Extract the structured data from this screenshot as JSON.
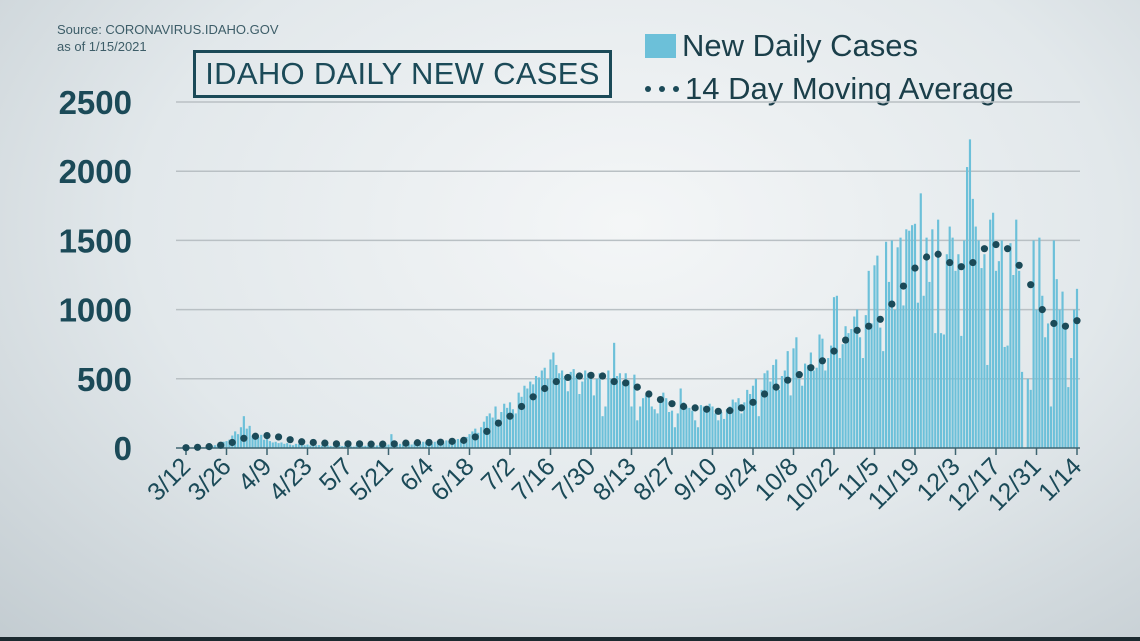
{
  "source_line": "Source: CORONAVIRUS.IDAHO.GOV",
  "as_of_line": "as of 1/15/2021",
  "colors": {
    "bars": "#6cc0d9",
    "dots": "#1b4a58",
    "grid": "#b9c0c4",
    "text": "#1b4a58"
  },
  "chart_data": {
    "type": "bar",
    "title": "IDAHO DAILY NEW CASES",
    "xlabel": "",
    "ylabel": "",
    "ylim": [
      0,
      2500
    ],
    "yticks": [
      "0",
      "500",
      "1000",
      "1500",
      "2000",
      "2500"
    ],
    "ytick_values": [
      0,
      500,
      1000,
      1500,
      2000,
      2500
    ],
    "x_start": "3/12",
    "x_end": "1/14",
    "xtick_labels": [
      "3/12",
      "3/26",
      "4/9",
      "4/23",
      "5/7",
      "5/21",
      "6/4",
      "6/18",
      "7/2",
      "7/16",
      "7/30",
      "8/13",
      "8/27",
      "9/10",
      "9/24",
      "10/8",
      "10/22",
      "11/5",
      "11/19",
      "12/3",
      "12/17",
      "12/31",
      "1/14"
    ],
    "xtick_interval_days": 14,
    "grid": true,
    "legend": {
      "placement": "top-right",
      "entries": [
        "New Daily Cases",
        "14 Day Moving Average"
      ]
    },
    "series": [
      {
        "name": "New Daily Cases",
        "kind": "bar",
        "interval_days": 1,
        "values": [
          1,
          1,
          2,
          3,
          4,
          5,
          6,
          8,
          12,
          15,
          20,
          25,
          30,
          45,
          50,
          60,
          90,
          120,
          100,
          150,
          230,
          140,
          160,
          90,
          70,
          80,
          95,
          60,
          70,
          50,
          40,
          45,
          35,
          40,
          30,
          35,
          25,
          20,
          30,
          28,
          22,
          20,
          25,
          18,
          15,
          20,
          22,
          18,
          16,
          20,
          15,
          12,
          18,
          20,
          14,
          16,
          18,
          12,
          10,
          20,
          15,
          14,
          16,
          20,
          15,
          12,
          18,
          22,
          16,
          20,
          25,
          100,
          15,
          20,
          30,
          25,
          28,
          30,
          25,
          40,
          35,
          30,
          45,
          40,
          35,
          30,
          45,
          50,
          40,
          38,
          55,
          50,
          45,
          60,
          65,
          55,
          70,
          80,
          100,
          120,
          140,
          110,
          150,
          190,
          230,
          250,
          220,
          300,
          180,
          260,
          320,
          290,
          330,
          280,
          250,
          400,
          370,
          450,
          430,
          480,
          460,
          520,
          510,
          560,
          580,
          500,
          640,
          690,
          600,
          540,
          560,
          520,
          410,
          550,
          570,
          520,
          390,
          480,
          560,
          540,
          520,
          380,
          500,
          540,
          230,
          300,
          560,
          500,
          760,
          520,
          540,
          480,
          540,
          490,
          300,
          530,
          200,
          300,
          360,
          380,
          400,
          300,
          280,
          250,
          330,
          400,
          360,
          260,
          270,
          150,
          250,
          430,
          330,
          300,
          290,
          270,
          200,
          150,
          310,
          300,
          280,
          320,
          300,
          250,
          200,
          260,
          210,
          280,
          300,
          350,
          330,
          360,
          250,
          330,
          420,
          390,
          450,
          500,
          230,
          420,
          540,
          560,
          480,
          600,
          640,
          420,
          520,
          560,
          700,
          380,
          720,
          800,
          500,
          450,
          610,
          600,
          690,
          560,
          580,
          820,
          790,
          560,
          650,
          740,
          1090,
          1100,
          650,
          750,
          880,
          830,
          860,
          950,
          1000,
          800,
          650,
          960,
          1280,
          900,
          1320,
          1390,
          870,
          700,
          1490,
          1200,
          1500,
          1000,
          1450,
          1520,
          1030,
          1580,
          1570,
          1610,
          1620,
          1050,
          1840,
          1100,
          1520,
          1200,
          1580,
          830,
          1650,
          830,
          820,
          1400,
          1600,
          1520,
          1280,
          1400,
          810,
          1500,
          2030,
          2230,
          1800,
          1600,
          1500,
          1300,
          1400,
          600,
          1650,
          1700,
          1280,
          1350,
          1500,
          730,
          740,
          1480,
          1250,
          1650,
          1280,
          550,
          0,
          500,
          420,
          1500,
          1000,
          1520,
          1100,
          800,
          900,
          300,
          1500,
          1220,
          1000,
          1130,
          900,
          440,
          650,
          1000,
          1150
        ]
      },
      {
        "name": "14 Day Moving Average",
        "kind": "dots",
        "interval_days": 4,
        "values": [
          2,
          5,
          10,
          20,
          40,
          70,
          85,
          90,
          80,
          60,
          45,
          40,
          35,
          30,
          30,
          30,
          28,
          28,
          30,
          35,
          38,
          40,
          42,
          48,
          55,
          80,
          120,
          180,
          230,
          300,
          370,
          430,
          480,
          510,
          520,
          525,
          520,
          480,
          470,
          440,
          390,
          350,
          320,
          300,
          290,
          280,
          265,
          270,
          290,
          330,
          390,
          440,
          490,
          530,
          580,
          630,
          700,
          780,
          850,
          880,
          930,
          1040,
          1170,
          1300,
          1380,
          1400,
          1340,
          1310,
          1340,
          1440,
          1470,
          1440,
          1320,
          1180,
          1000,
          900,
          880,
          920
        ]
      }
    ]
  }
}
